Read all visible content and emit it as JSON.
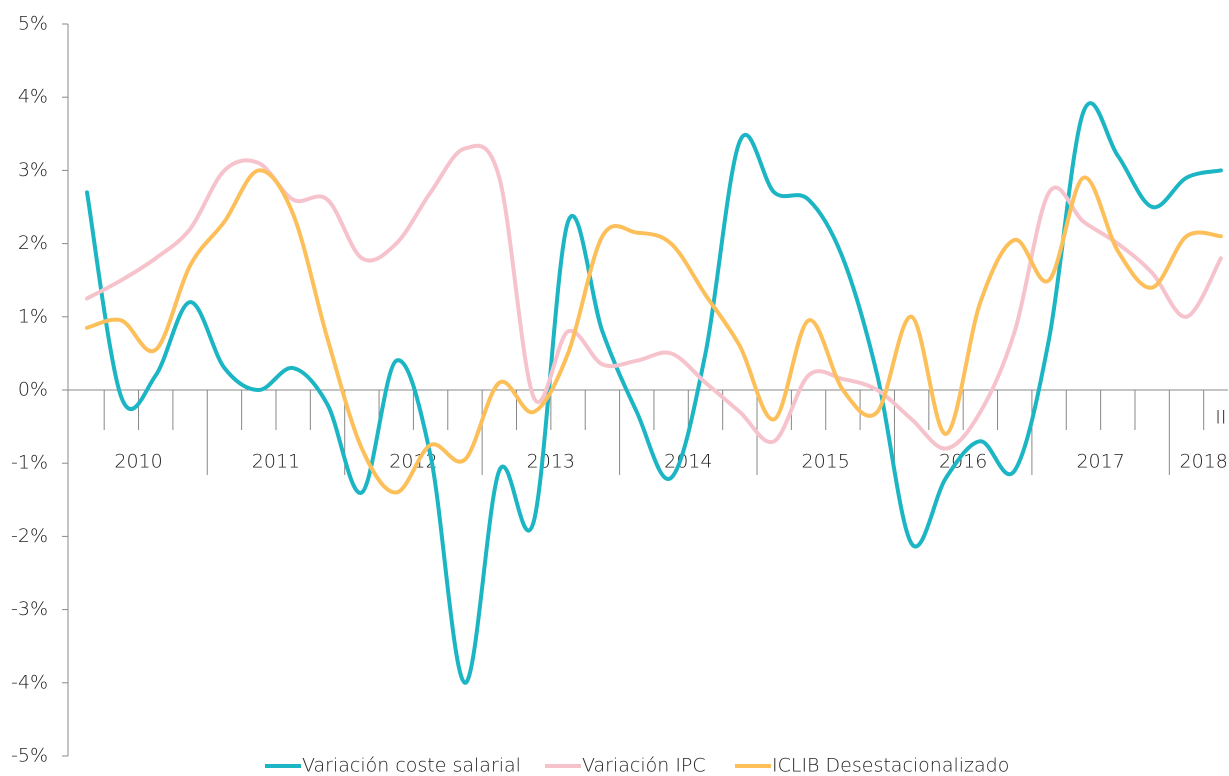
{
  "chart_data": {
    "type": "line",
    "categories": [
      null,
      null,
      null,
      null,
      null,
      null,
      null,
      null,
      null,
      null,
      null,
      null,
      null,
      null,
      null,
      null,
      null,
      null,
      null,
      null,
      null,
      null,
      null,
      null,
      null,
      null,
      null,
      null,
      null,
      null,
      null,
      null,
      null,
      "II"
    ],
    "x_groups": [
      "2010",
      "2011",
      "2012",
      "2013",
      "2014",
      "2015",
      "2016",
      "2017",
      "2018"
    ],
    "series": [
      {
        "name": "Variación coste salarial",
        "color": "#1bb5c4",
        "values": [
          2.7,
          -0.1,
          0.2,
          1.2,
          0.3,
          0.0,
          0.3,
          -0.2,
          -1.4,
          0.4,
          -0.9,
          -4.0,
          -1.1,
          -1.8,
          2.3,
          0.8,
          -0.3,
          -1.2,
          0.5,
          3.4,
          2.7,
          2.6,
          1.8,
          0.2,
          -2.1,
          -1.2,
          -0.7,
          -1.1,
          0.7,
          3.8,
          3.2,
          2.5,
          2.9,
          3.0
        ]
      },
      {
        "name": "Variación IPC",
        "color": "#f6c3cd",
        "values": [
          1.25,
          1.5,
          1.8,
          2.2,
          3.0,
          3.1,
          2.6,
          2.6,
          1.8,
          2.0,
          2.7,
          3.3,
          2.9,
          -0.1,
          0.8,
          0.35,
          0.4,
          0.5,
          0.1,
          -0.3,
          -0.7,
          0.2,
          0.15,
          0.0,
          -0.4,
          -0.8,
          -0.3,
          0.8,
          2.7,
          2.3,
          2.0,
          1.6,
          1.0,
          1.8
        ]
      },
      {
        "name": "ICLIB Desestacionalizado",
        "color": "#fcbf5a",
        "values": [
          0.85,
          0.95,
          0.55,
          1.7,
          2.3,
          3.0,
          2.4,
          0.7,
          -0.8,
          -1.4,
          -0.75,
          -0.95,
          0.1,
          -0.3,
          0.5,
          2.1,
          2.15,
          2.0,
          1.3,
          0.6,
          -0.4,
          0.95,
          0.0,
          -0.3,
          1.0,
          -0.6,
          1.2,
          2.05,
          1.5,
          2.9,
          1.9,
          1.4,
          2.1,
          2.1
        ]
      }
    ],
    "ylim": [
      -5,
      5
    ],
    "yticks": [
      {
        "value": -5,
        "label": "-5%"
      },
      {
        "value": -4,
        "label": "-4%"
      },
      {
        "value": -3,
        "label": "-3%"
      },
      {
        "value": -2,
        "label": "-2%"
      },
      {
        "value": -1,
        "label": "-1%"
      },
      {
        "value": 0,
        "label": "0%"
      },
      {
        "value": 1,
        "label": "1%"
      },
      {
        "value": 2,
        "label": "2%"
      },
      {
        "value": 3,
        "label": "3%"
      },
      {
        "value": 4,
        "label": "4%"
      },
      {
        "value": 5,
        "label": "5%"
      }
    ],
    "grid": false,
    "legend": "bottom"
  }
}
